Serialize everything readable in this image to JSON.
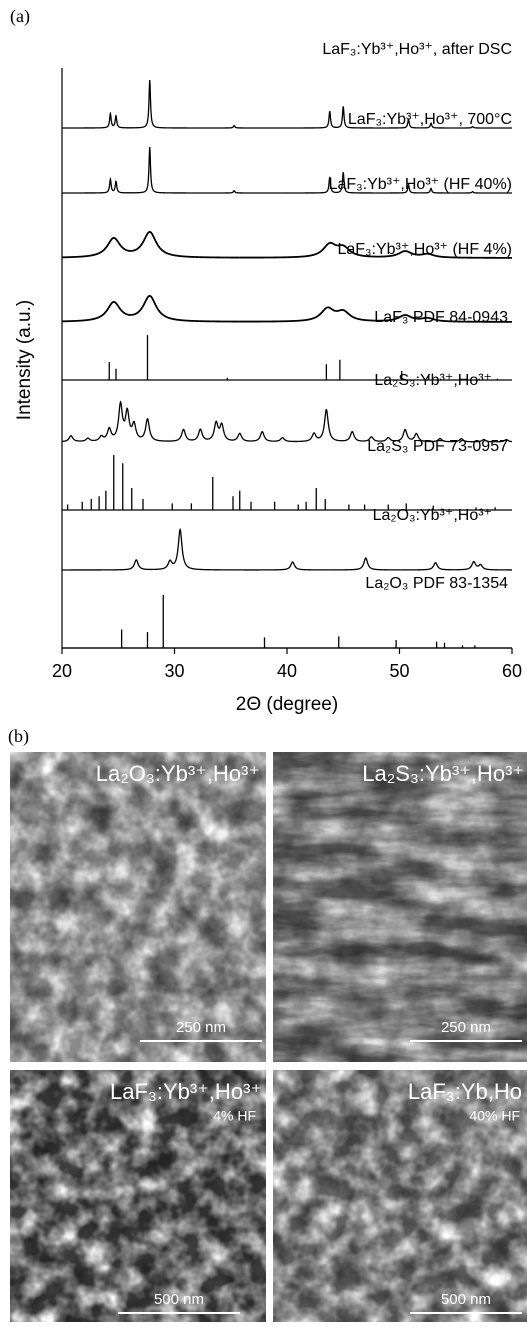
{
  "chart_data": {
    "type": "xrd",
    "panel_label": "(a)",
    "xlabel": "2Θ (degree)",
    "ylabel": "Intensity (a.u.)",
    "xlim": [
      20,
      60
    ],
    "xticks": [
      20,
      30,
      40,
      50,
      60
    ],
    "color": "#000000",
    "series": [
      {
        "name": "LaF₃:Yb³⁺,Ho³⁺, after DSC",
        "kind": "sharp",
        "x": [
          24.3,
          24.8,
          27.8,
          35.3,
          43.8,
          45.0,
          50.8,
          52.8,
          56.5
        ],
        "values": [
          30,
          25,
          100,
          5,
          35,
          45,
          18,
          10,
          3
        ]
      },
      {
        "name": "LaF₃:Yb³⁺,Ho³⁺, 700°C",
        "kind": "sharp",
        "x": [
          24.3,
          24.8,
          27.8,
          35.3,
          43.8,
          45.0,
          50.8,
          52.8,
          56.5
        ],
        "values": [
          30,
          25,
          100,
          5,
          35,
          45,
          18,
          10,
          3
        ]
      },
      {
        "name": "LaF₃:Yb³⁺,Ho³⁺ (HF 40%)",
        "kind": "broad",
        "x": [
          24.6,
          27.8,
          43.8,
          45.0,
          50.5,
          52.5
        ],
        "values": [
          45,
          60,
          30,
          22,
          15,
          8
        ]
      },
      {
        "name": "LaF₃:Yb³⁺,Ho³⁺ (HF 4%)",
        "kind": "broad",
        "x": [
          24.6,
          27.8,
          43.6,
          45.0,
          50.5,
          52.5
        ],
        "values": [
          45,
          60,
          30,
          22,
          15,
          8
        ]
      },
      {
        "name": "LaF₃ PDF 84-0943",
        "kind": "stick",
        "x": [
          24.2,
          24.8,
          27.6,
          34.7,
          43.5,
          44.7,
          50.2,
          52.6,
          56.0,
          58.7
        ],
        "values": [
          40,
          25,
          100,
          5,
          35,
          45,
          20,
          12,
          3,
          3
        ]
      },
      {
        "name": "La₂S₃:Yb³⁺,Ho³⁺",
        "kind": "medium",
        "x": [
          20.8,
          22.3,
          23.5,
          24.2,
          25.2,
          25.8,
          26.4,
          27.6,
          30.8,
          32.3,
          33.7,
          34.2,
          35.8,
          37.8,
          39.6,
          42.4,
          43.5,
          45.8,
          47.5,
          49.0,
          50.5,
          51.5,
          53.6,
          55.5,
          57.5,
          59.5
        ],
        "values": [
          15,
          8,
          12,
          30,
          90,
          70,
          40,
          55,
          30,
          30,
          45,
          40,
          20,
          25,
          10,
          20,
          80,
          25,
          12,
          10,
          30,
          20,
          8,
          8,
          6,
          6
        ]
      },
      {
        "name": "La₂S₃ PDF 73-0957",
        "kind": "stick",
        "x": [
          20.5,
          21.8,
          22.6,
          23.3,
          23.9,
          24.6,
          25.4,
          26.2,
          27.2,
          29.8,
          31.5,
          33.4,
          35.2,
          35.8,
          36.8,
          38.9,
          41.0,
          41.7,
          42.6,
          43.4,
          45.5,
          46.9,
          49.0,
          50.6,
          53.0,
          56.8,
          58.5
        ],
        "values": [
          10,
          15,
          20,
          25,
          35,
          100,
          85,
          40,
          20,
          12,
          12,
          60,
          25,
          35,
          15,
          15,
          10,
          15,
          40,
          20,
          10,
          10,
          10,
          12,
          8,
          5,
          5
        ]
      },
      {
        "name": "La₂O₃:Yb³⁺,Ho³⁺",
        "kind": "medium",
        "x": [
          26.6,
          29.6,
          30.5,
          40.5,
          47.0,
          53.2,
          56.6,
          57.2
        ],
        "values": [
          25,
          20,
          100,
          20,
          30,
          18,
          20,
          12
        ]
      },
      {
        "name": "La₂O₃ PDF 83-1354",
        "kind": "stick",
        "x": [
          25.3,
          27.6,
          29.0,
          38.0,
          44.6,
          49.7,
          53.3,
          54.0,
          55.6,
          56.7
        ],
        "values": [
          35,
          30,
          100,
          20,
          22,
          15,
          12,
          10,
          5,
          5
        ]
      }
    ]
  },
  "panel_b": {
    "label": "(b)",
    "images": [
      {
        "title": "La₂O₃:Yb³⁺,Ho³⁺",
        "scale_bar": "250 nm"
      },
      {
        "title": "La₂S₃:Yb³⁺,Ho³⁺",
        "scale_bar": "250 nm"
      },
      {
        "title": "LaF₃:Yb³⁺,Ho³⁺",
        "note": "4% HF",
        "scale_bar": "500 nm"
      },
      {
        "title": "LaF₃:Yb,Ho",
        "note": "40% HF",
        "scale_bar": "500 nm"
      }
    ]
  }
}
